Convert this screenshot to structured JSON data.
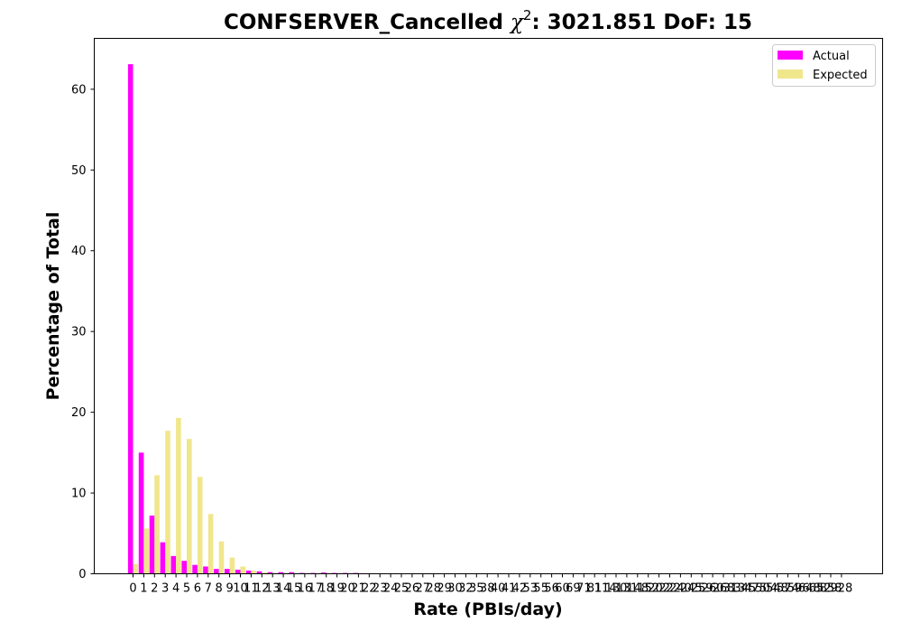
{
  "chart_data": {
    "type": "bar",
    "title": "CONFSERVER_Cancelled χ²: 3021.851 DoF: 15",
    "title_parts": {
      "prefix": "CONFSERVER_Cancelled ",
      "chi": "χ",
      "sup": "2",
      "suffix": ": 3021.851 DoF: 15"
    },
    "xlabel": "Rate (PBIs/day)",
    "ylabel": "Percentage of Total",
    "ylim": [
      0,
      66.3
    ],
    "yticks": [
      0,
      10,
      20,
      30,
      40,
      50,
      60
    ],
    "legend_position": "top-right",
    "categories": [
      "0",
      "1",
      "2",
      "3",
      "4",
      "5",
      "6",
      "7",
      "8",
      "9",
      "10",
      "11",
      "12",
      "13",
      "14",
      "15",
      "16",
      "17",
      "18",
      "19",
      "20",
      "21",
      "22",
      "23",
      "24",
      "25",
      "26",
      "27",
      "28",
      "29",
      "30",
      "32",
      "35",
      "38",
      "40",
      "41",
      "42",
      "53",
      "55",
      "56",
      "60",
      "69",
      "71",
      "81",
      "114",
      "130",
      "131",
      "148",
      "152",
      "202",
      "222",
      "240",
      "245",
      "259",
      "260",
      "268",
      "313",
      "345",
      "475",
      "504",
      "548",
      "574",
      "596",
      "648",
      "652",
      "858",
      "928"
    ],
    "series": [
      {
        "name": "Actual",
        "color": "#ff00ff",
        "values": [
          63.1,
          15.0,
          7.2,
          3.9,
          2.2,
          1.6,
          1.1,
          0.9,
          0.6,
          0.6,
          0.5,
          0.4,
          0.3,
          0.2,
          0.2,
          0.2,
          0.1,
          0.1,
          0.15,
          0.1,
          0.1,
          0.1,
          0.05,
          0.05,
          0.05,
          0.05,
          0.05,
          0.05,
          0.05,
          0.05,
          0.05,
          0.05,
          0.05,
          0.05,
          0.05,
          0.05,
          0.05,
          0.05,
          0.05,
          0.05,
          0.05,
          0.05,
          0.05,
          0.05,
          0.05,
          0.05,
          0.05,
          0.05,
          0.05,
          0.05,
          0.05,
          0.05,
          0.05,
          0.05,
          0.05,
          0.05,
          0.05,
          0.05,
          0.05,
          0.05,
          0.05,
          0.05,
          0.05,
          0.05,
          0.05,
          0.05,
          0.05
        ]
      },
      {
        "name": "Expected",
        "color": "#f0e68c",
        "values": [
          1.2,
          5.6,
          12.2,
          17.7,
          19.3,
          16.7,
          12.0,
          7.4,
          4.0,
          2.0,
          0.9,
          0.4,
          0.15,
          0.05,
          0.02,
          0.01,
          0,
          0,
          0,
          0,
          0,
          0,
          0,
          0,
          0,
          0,
          0,
          0,
          0,
          0,
          0,
          0,
          0,
          0,
          0,
          0,
          0,
          0,
          0,
          0,
          0,
          0,
          0,
          0,
          0,
          0,
          0,
          0,
          0,
          0,
          0,
          0,
          0,
          0,
          0,
          0,
          0,
          0,
          0,
          0,
          0,
          0,
          0,
          0,
          0,
          0,
          0
        ]
      }
    ]
  }
}
